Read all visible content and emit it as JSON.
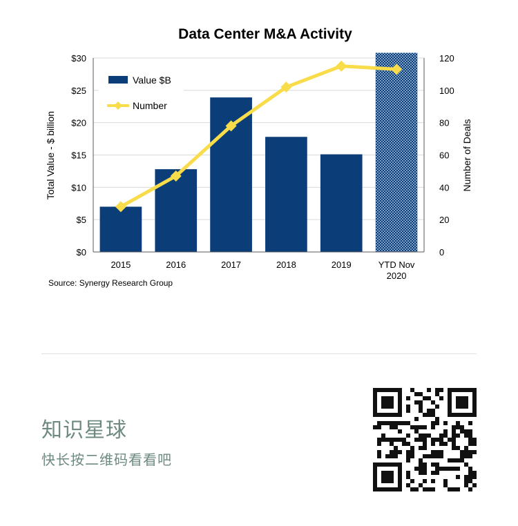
{
  "chart_data": {
    "type": "bar",
    "title": "Data Center M&A Activity",
    "categories": [
      "2015",
      "2016",
      "2017",
      "2018",
      "2019",
      "YTD Nov\n2020"
    ],
    "series": [
      {
        "name": "Value $B",
        "type": "bar",
        "axis": "left",
        "color": "#0b3d78",
        "values": [
          7.0,
          12.8,
          23.9,
          17.8,
          15.1,
          30.8
        ],
        "hatched_last": true
      },
      {
        "name": "Number",
        "type": "line",
        "axis": "right",
        "color": "#f9dc4a",
        "values": [
          28,
          47,
          78,
          102,
          115,
          113
        ]
      }
    ],
    "y_left": {
      "label": "Total Value - $ billion",
      "ticks": [
        "$0",
        "$5",
        "$10",
        "$15",
        "$20",
        "$25",
        "$30"
      ],
      "range": [
        0,
        30
      ]
    },
    "y_right": {
      "label": "Number of Deals",
      "ticks": [
        "0",
        "20",
        "40",
        "60",
        "80",
        "100",
        "120"
      ],
      "range": [
        0,
        120
      ]
    },
    "grid": true,
    "legend": "top-left",
    "source": "Source: Synergy Research Group"
  },
  "footer": {
    "title": "知识星球",
    "subtitle": "快长按二维码看看吧"
  }
}
